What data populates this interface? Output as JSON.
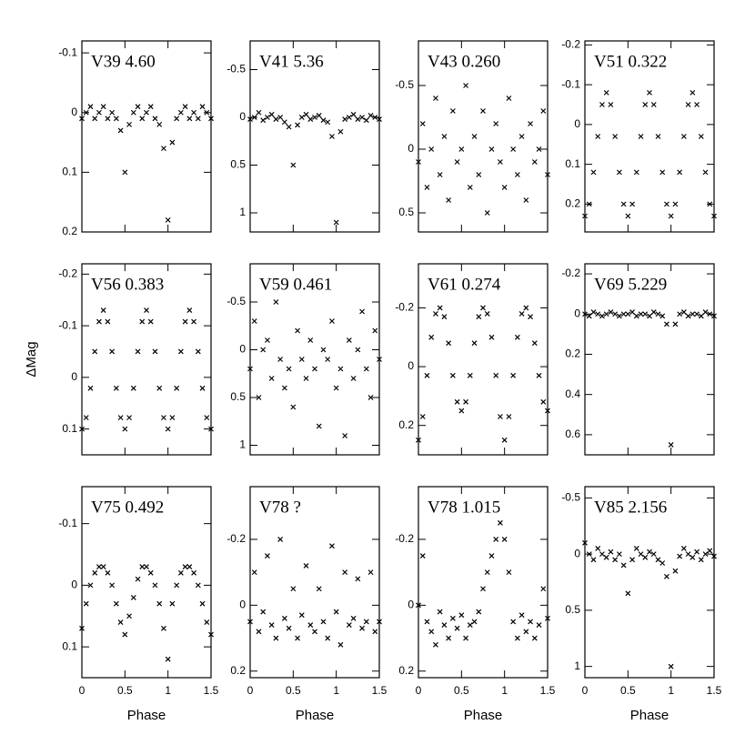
{
  "chart_data": [
    {
      "type": "scatter",
      "title": "V39  4.60",
      "xlim": [
        0,
        1.5
      ],
      "xticks": [
        0,
        0.5,
        1,
        1.5
      ],
      "ylim": [
        0.2,
        -0.12
      ],
      "yticks": [
        -0.1,
        0,
        0.1,
        0.2
      ],
      "x": [
        0,
        0.05,
        0.1,
        0.15,
        0.2,
        0.25,
        0.3,
        0.35,
        0.4,
        0.45,
        0.5,
        0.55,
        0.6,
        0.65,
        0.7,
        0.75,
        0.8,
        0.85,
        0.9,
        0.95,
        1,
        1.05,
        1.1,
        1.15,
        1.2,
        1.25,
        1.3,
        1.35,
        1.4,
        1.45,
        1.5
      ],
      "values": [
        0.01,
        0,
        -0.01,
        0.01,
        0,
        -0.01,
        0.01,
        0,
        0.01,
        0.03,
        0.1,
        0.02,
        0,
        -0.01,
        0.01,
        0,
        -0.01,
        0.01,
        0.02,
        0.06,
        0.18,
        0.05,
        0.01,
        0,
        -0.01,
        0.01,
        0,
        0.01,
        -0.01,
        0,
        0.01
      ]
    },
    {
      "type": "scatter",
      "title": "V41  5.36",
      "xlim": [
        0,
        1.5
      ],
      "xticks": [
        0,
        0.5,
        1,
        1.5
      ],
      "ylim": [
        1.2,
        -0.8
      ],
      "yticks": [
        -0.5,
        0,
        0.5,
        1
      ],
      "x": [
        0,
        0.05,
        0.1,
        0.15,
        0.2,
        0.25,
        0.3,
        0.35,
        0.4,
        0.45,
        0.5,
        0.55,
        0.6,
        0.65,
        0.7,
        0.75,
        0.8,
        0.85,
        0.9,
        0.95,
        1,
        1.05,
        1.1,
        1.15,
        1.2,
        1.25,
        1.3,
        1.35,
        1.4,
        1.45,
        1.5
      ],
      "values": [
        0.02,
        0,
        -0.05,
        0.03,
        0,
        -0.03,
        0.02,
        0,
        0.05,
        0.1,
        0.5,
        0.08,
        0,
        -0.03,
        0.02,
        0,
        -0.02,
        0.03,
        0.05,
        0.2,
        1.1,
        0.15,
        0.02,
        0,
        -0.03,
        0.02,
        0,
        0.03,
        -0.02,
        0,
        0.02
      ]
    },
    {
      "type": "scatter",
      "title": "V43  0.260",
      "xlim": [
        0,
        1.5
      ],
      "xticks": [
        0,
        0.5,
        1,
        1.5
      ],
      "ylim": [
        0.65,
        -0.85
      ],
      "yticks": [
        -0.5,
        0,
        0.5
      ],
      "x": [
        0,
        0.05,
        0.1,
        0.15,
        0.2,
        0.25,
        0.3,
        0.35,
        0.4,
        0.45,
        0.5,
        0.55,
        0.6,
        0.65,
        0.7,
        0.75,
        0.8,
        0.85,
        0.9,
        0.95,
        1,
        1.05,
        1.1,
        1.15,
        1.2,
        1.25,
        1.3,
        1.35,
        1.4,
        1.45,
        1.5
      ],
      "values": [
        0.1,
        -0.2,
        0.3,
        0,
        -0.4,
        0.2,
        -0.1,
        0.4,
        -0.3,
        0.1,
        0,
        -0.5,
        0.3,
        -0.1,
        0.2,
        -0.3,
        0.5,
        0,
        -0.2,
        0.1,
        0.3,
        -0.4,
        0,
        0.2,
        -0.1,
        0.4,
        -0.2,
        0.1,
        0,
        -0.3,
        0.2
      ]
    },
    {
      "type": "scatter",
      "title": "V51  0.322",
      "xlim": [
        0,
        1.5
      ],
      "xticks": [
        0,
        0.5,
        1,
        1.5
      ],
      "ylim": [
        0.27,
        -0.21
      ],
      "yticks": [
        -0.2,
        -0.1,
        0,
        0.1,
        0.2
      ],
      "x": [
        0,
        0.05,
        0.1,
        0.15,
        0.2,
        0.25,
        0.3,
        0.35,
        0.4,
        0.45,
        0.5,
        0.55,
        0.6,
        0.65,
        0.7,
        0.75,
        0.8,
        0.85,
        0.9,
        0.95,
        1,
        1.05,
        1.1,
        1.15,
        1.2,
        1.25,
        1.3,
        1.35,
        1.4,
        1.45,
        1.5
      ],
      "values": [
        0.23,
        0.2,
        0.12,
        0.03,
        -0.05,
        -0.08,
        -0.05,
        0.03,
        0.12,
        0.2,
        0.23,
        0.2,
        0.12,
        0.03,
        -0.05,
        -0.08,
        -0.05,
        0.03,
        0.12,
        0.2,
        0.23,
        0.2,
        0.12,
        0.03,
        -0.05,
        -0.08,
        -0.05,
        0.03,
        0.12,
        0.2,
        0.23
      ]
    },
    {
      "type": "scatter",
      "title": "V56  0.383",
      "ylabel": "ΔMag",
      "xlim": [
        0,
        1.5
      ],
      "xticks": [
        0,
        0.5,
        1,
        1.5
      ],
      "ylim": [
        0.15,
        -0.22
      ],
      "yticks": [
        -0.2,
        -0.1,
        0,
        0.1
      ],
      "x": [
        0,
        0.05,
        0.1,
        0.15,
        0.2,
        0.25,
        0.3,
        0.35,
        0.4,
        0.45,
        0.5,
        0.55,
        0.6,
        0.65,
        0.7,
        0.75,
        0.8,
        0.85,
        0.9,
        0.95,
        1,
        1.05,
        1.1,
        1.15,
        1.2,
        1.25,
        1.3,
        1.35,
        1.4,
        1.45,
        1.5
      ],
      "values": [
        0.1,
        0.078,
        0.021,
        -0.05,
        -0.108,
        -0.13,
        -0.108,
        -0.05,
        0.021,
        0.078,
        0.1,
        0.078,
        0.021,
        -0.05,
        -0.108,
        -0.13,
        -0.108,
        -0.05,
        0.021,
        0.078,
        0.1,
        0.078,
        0.021,
        -0.05,
        -0.108,
        -0.13,
        -0.108,
        -0.05,
        0.021,
        0.078,
        0.1
      ]
    },
    {
      "type": "scatter",
      "title": "V59  0.461",
      "xlim": [
        0,
        1.5
      ],
      "xticks": [
        0,
        0.5,
        1,
        1.5
      ],
      "ylim": [
        1.1,
        -0.9
      ],
      "yticks": [
        -0.5,
        0,
        0.5,
        1
      ],
      "x": [
        0,
        0.05,
        0.1,
        0.15,
        0.2,
        0.25,
        0.3,
        0.35,
        0.4,
        0.45,
        0.5,
        0.55,
        0.6,
        0.65,
        0.7,
        0.75,
        0.8,
        0.85,
        0.9,
        0.95,
        1,
        1.05,
        1.1,
        1.15,
        1.2,
        1.25,
        1.3,
        1.35,
        1.4,
        1.45,
        1.5
      ],
      "values": [
        0.2,
        -0.3,
        0.5,
        0,
        -0.1,
        0.3,
        -0.5,
        0.1,
        0.4,
        0.2,
        0.6,
        -0.2,
        0.1,
        0.3,
        -0.1,
        0.2,
        0.8,
        0,
        0.1,
        -0.3,
        0.4,
        0.2,
        0.9,
        -0.1,
        0.3,
        0,
        -0.4,
        0.2,
        0.5,
        -0.2,
        0.1
      ]
    },
    {
      "type": "scatter",
      "title": "V61  0.274",
      "xlim": [
        0,
        1.5
      ],
      "xticks": [
        0,
        0.5,
        1,
        1.5
      ],
      "ylim": [
        0.3,
        -0.35
      ],
      "yticks": [
        -0.2,
        0,
        0.2
      ],
      "x": [
        0,
        0.05,
        0.1,
        0.15,
        0.2,
        0.25,
        0.3,
        0.35,
        0.4,
        0.45,
        0.5,
        0.55,
        0.6,
        0.65,
        0.7,
        0.75,
        0.8,
        0.85,
        0.9,
        0.95,
        1,
        1.05,
        1.1,
        1.15,
        1.2,
        1.25,
        1.3,
        1.35,
        1.4,
        1.45,
        1.5
      ],
      "values": [
        0.25,
        0.17,
        0.03,
        -0.1,
        -0.18,
        -0.2,
        -0.17,
        -0.08,
        0.03,
        0.12,
        0.15,
        0.12,
        0.03,
        -0.08,
        -0.17,
        -0.2,
        -0.18,
        -0.1,
        0.03,
        0.17,
        0.25,
        0.17,
        0.03,
        -0.1,
        -0.18,
        -0.2,
        -0.17,
        -0.08,
        0.03,
        0.12,
        0.15
      ]
    },
    {
      "type": "scatter",
      "title": "V69  5.229",
      "xlim": [
        0,
        1.5
      ],
      "xticks": [
        0,
        0.5,
        1,
        1.5
      ],
      "ylim": [
        0.7,
        -0.25
      ],
      "yticks": [
        -0.2,
        0,
        0.2,
        0.4,
        0.6
      ],
      "x": [
        0,
        0.05,
        0.1,
        0.15,
        0.2,
        0.25,
        0.3,
        0.35,
        0.4,
        0.45,
        0.5,
        0.55,
        0.6,
        0.65,
        0.7,
        0.75,
        0.8,
        0.85,
        0.9,
        0.95,
        1,
        1.05,
        1.1,
        1.15,
        1.2,
        1.25,
        1.3,
        1.35,
        1.4,
        1.45,
        1.5
      ],
      "values": [
        0,
        0.01,
        -0.01,
        0,
        0.01,
        0,
        -0.01,
        0,
        0.01,
        0,
        0,
        -0.01,
        0.01,
        0,
        0,
        0.01,
        -0.01,
        0,
        0.01,
        0.05,
        0.65,
        0.05,
        0,
        -0.01,
        0.01,
        0,
        0,
        0.01,
        -0.01,
        0,
        0.01
      ]
    },
    {
      "type": "scatter",
      "title": "V75  0.492",
      "xlabel": "Phase",
      "xlim": [
        0,
        1.5
      ],
      "xticks": [
        0,
        0.5,
        1,
        1.5
      ],
      "ylim": [
        0.15,
        -0.16
      ],
      "yticks": [
        -0.1,
        0,
        0.1
      ],
      "x": [
        0,
        0.05,
        0.1,
        0.15,
        0.2,
        0.25,
        0.3,
        0.35,
        0.4,
        0.45,
        0.5,
        0.55,
        0.6,
        0.65,
        0.7,
        0.75,
        0.8,
        0.85,
        0.9,
        0.95,
        1,
        1.05,
        1.1,
        1.15,
        1.2,
        1.25,
        1.3,
        1.35,
        1.4,
        1.45,
        1.5
      ],
      "values": [
        0.07,
        0.03,
        0,
        -0.02,
        -0.03,
        -0.03,
        -0.02,
        0,
        0.03,
        0.06,
        0.08,
        0.05,
        0.02,
        -0.01,
        -0.03,
        -0.03,
        -0.02,
        0,
        0.03,
        0.07,
        0.12,
        0.03,
        0,
        -0.02,
        -0.03,
        -0.03,
        -0.02,
        0,
        0.03,
        0.06,
        0.08
      ]
    },
    {
      "type": "scatter",
      "title": "V78  ?",
      "xlabel": "Phase",
      "xlim": [
        0,
        1.5
      ],
      "xticks": [
        0,
        0.5,
        1,
        1.5
      ],
      "ylim": [
        0.22,
        -0.36
      ],
      "yticks": [
        -0.2,
        0,
        0.2
      ],
      "x": [
        0,
        0.05,
        0.1,
        0.15,
        0.2,
        0.25,
        0.3,
        0.35,
        0.4,
        0.45,
        0.5,
        0.55,
        0.6,
        0.65,
        0.7,
        0.75,
        0.8,
        0.85,
        0.9,
        0.95,
        1,
        1.05,
        1.1,
        1.15,
        1.2,
        1.25,
        1.3,
        1.35,
        1.4,
        1.45,
        1.5
      ],
      "values": [
        0.05,
        -0.1,
        0.08,
        0.02,
        -0.15,
        0.06,
        0.1,
        -0.2,
        0.04,
        0.07,
        -0.05,
        0.1,
        0.03,
        -0.12,
        0.06,
        0.08,
        -0.05,
        0.05,
        0.1,
        -0.18,
        0.02,
        0.12,
        -0.1,
        0.06,
        0.04,
        -0.08,
        0.07,
        0.05,
        -0.1,
        0.08,
        0.05
      ]
    },
    {
      "type": "scatter",
      "title": "V78  1.015",
      "xlabel": "Phase",
      "xlim": [
        0,
        1.5
      ],
      "xticks": [
        0,
        0.5,
        1,
        1.5
      ],
      "ylim": [
        0.22,
        -0.36
      ],
      "yticks": [
        -0.2,
        0,
        0.2
      ],
      "x": [
        0,
        0.05,
        0.1,
        0.15,
        0.2,
        0.25,
        0.3,
        0.35,
        0.4,
        0.45,
        0.5,
        0.55,
        0.6,
        0.65,
        0.7,
        0.75,
        0.8,
        0.85,
        0.9,
        0.95,
        1,
        1.05,
        1.1,
        1.15,
        1.2,
        1.25,
        1.3,
        1.35,
        1.4,
        1.45,
        1.5
      ],
      "values": [
        0,
        -0.15,
        0.05,
        0.08,
        0.12,
        0.02,
        0.06,
        0.1,
        0.04,
        0.07,
        0.03,
        0.1,
        0.06,
        0.05,
        0.02,
        -0.05,
        -0.1,
        -0.15,
        -0.2,
        -0.25,
        -0.2,
        -0.1,
        0.05,
        0.1,
        0.03,
        0.08,
        0.05,
        0.1,
        0.06,
        -0.05,
        0.04
      ]
    },
    {
      "type": "scatter",
      "title": "V85  2.156",
      "xlabel": "Phase",
      "xlim": [
        0,
        1.5
      ],
      "xticks": [
        0,
        0.5,
        1,
        1.5
      ],
      "ylim": [
        1.1,
        -0.6
      ],
      "yticks": [
        -0.5,
        0,
        0.5,
        1
      ],
      "x": [
        0,
        0.05,
        0.1,
        0.15,
        0.2,
        0.25,
        0.3,
        0.35,
        0.4,
        0.45,
        0.5,
        0.55,
        0.6,
        0.65,
        0.7,
        0.75,
        0.8,
        0.85,
        0.9,
        0.95,
        1,
        1.05,
        1.1,
        1.15,
        1.2,
        1.25,
        1.3,
        1.35,
        1.4,
        1.45,
        1.5
      ],
      "values": [
        -0.1,
        0,
        0.05,
        -0.05,
        0,
        0.03,
        -0.02,
        0.05,
        0,
        0.1,
        0.35,
        0.05,
        -0.05,
        0,
        0.03,
        -0.02,
        0,
        0.05,
        0.08,
        0.2,
        1,
        0.15,
        0.02,
        -0.05,
        0,
        0.03,
        -0.02,
        0.05,
        0,
        -0.03,
        0.02
      ]
    }
  ]
}
